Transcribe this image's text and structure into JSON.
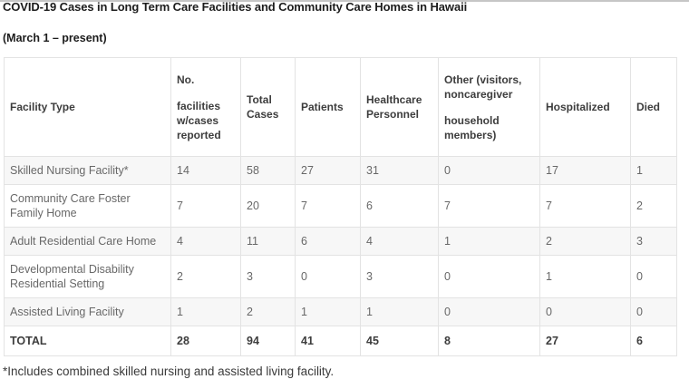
{
  "page": {
    "title": "COVID-19 Cases in Long Term Care Facilities and Community Care Homes in Hawaii",
    "subtitle": "(March 1 – present)",
    "footnote": "*Includes combined skilled nursing and assisted living facility."
  },
  "table": {
    "columns": [
      {
        "line1": "Facility Type"
      },
      {
        "line1": "No.",
        "line2": "facilities w/cases reported"
      },
      {
        "line1": "Total Cases"
      },
      {
        "line1": "Patients"
      },
      {
        "line1": "Healthcare Personnel"
      },
      {
        "line1": "Other (visitors, noncaregiver",
        "line2": "household members)"
      },
      {
        "line1": "Hospitalized"
      },
      {
        "line1": "Died"
      }
    ],
    "rows": [
      {
        "facility": "Skilled Nursing Facility*",
        "values": [
          "14",
          "58",
          "27",
          "31",
          "0",
          "17",
          "1"
        ]
      },
      {
        "facility": "Community Care Foster Family Home",
        "values": [
          "7",
          "20",
          "7",
          "6",
          "7",
          "7",
          "2"
        ]
      },
      {
        "facility": "Adult Residential Care Home",
        "values": [
          "4",
          "11",
          "6",
          "4",
          "1",
          "2",
          "3"
        ]
      },
      {
        "facility": "Developmental Disability Residential Setting",
        "values": [
          "2",
          "3",
          "0",
          "3",
          "0",
          "1",
          "0"
        ]
      },
      {
        "facility": "Assisted Living Facility",
        "values": [
          "1",
          "2",
          "1",
          "1",
          "0",
          "0",
          "0"
        ]
      }
    ],
    "total": {
      "label": "TOTAL",
      "values": [
        "28",
        "94",
        "41",
        "45",
        "8",
        "27",
        "6"
      ]
    }
  },
  "colors": {
    "rule": "#c6c6c6",
    "title": "#1c1c1c",
    "border": "#e3e3e3",
    "headtext": "#3d3d3d",
    "celltext": "#686868",
    "foottext": "#3a3a3a",
    "stripe": "#f7f7f7"
  }
}
